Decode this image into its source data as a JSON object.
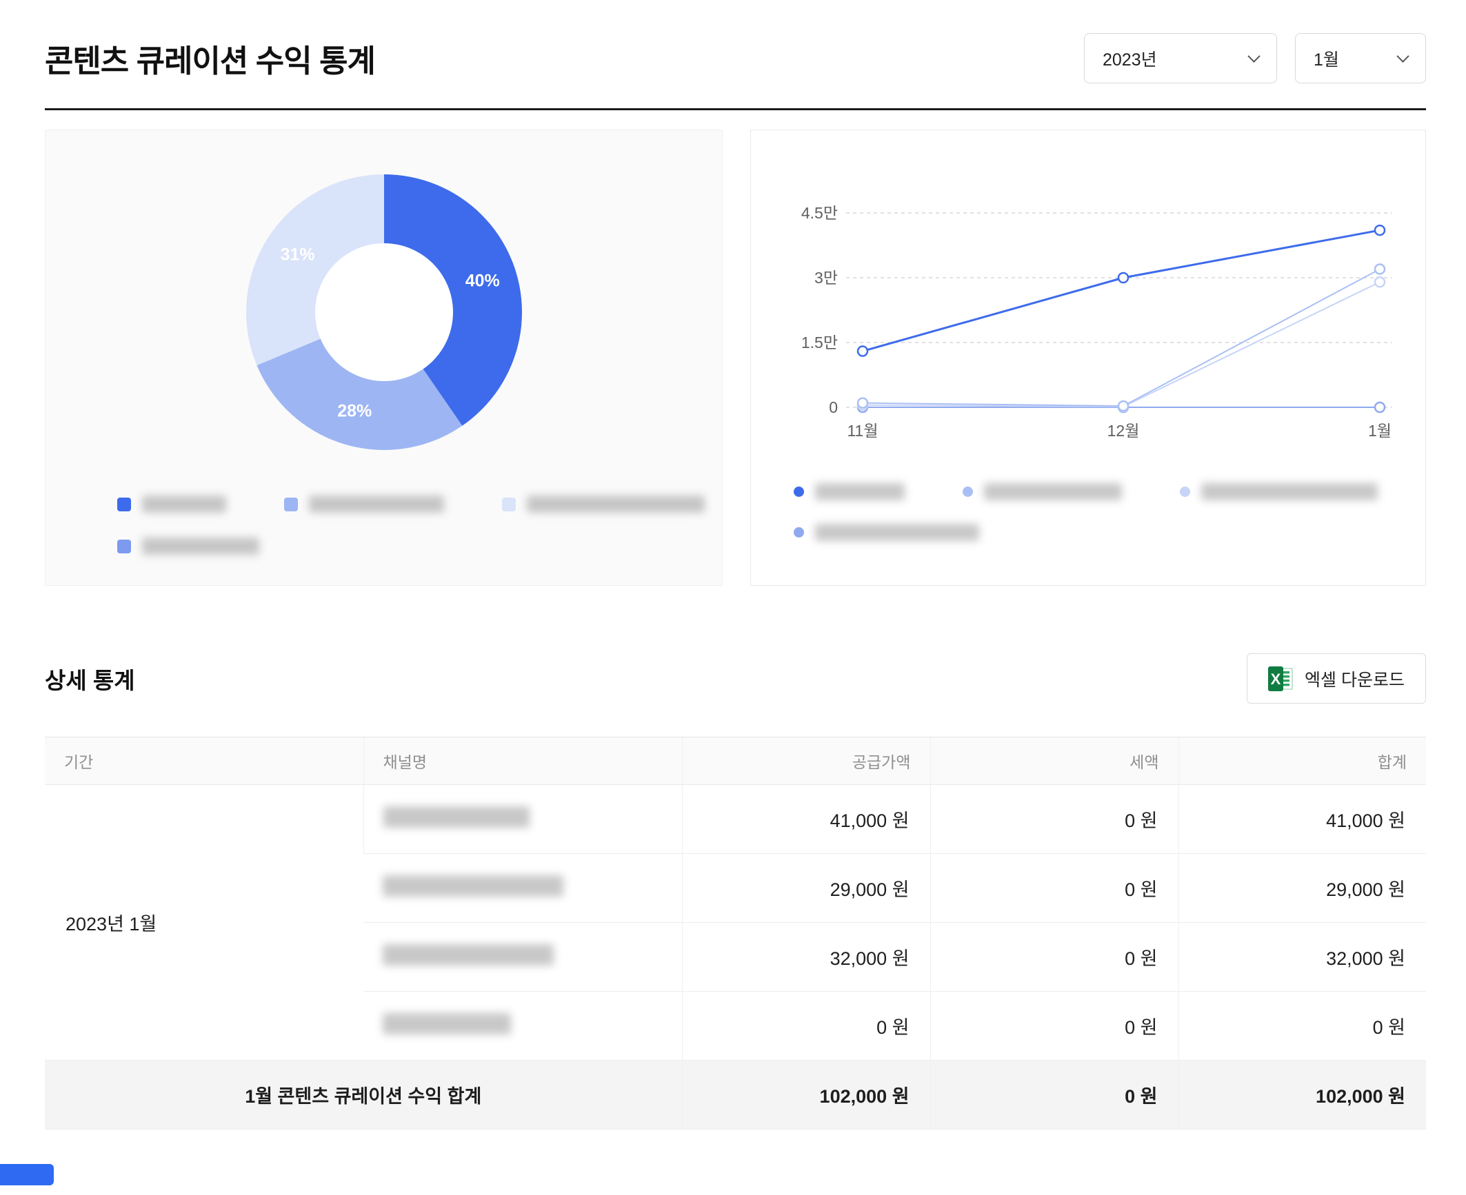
{
  "page": {
    "title": "콘텐츠 큐레이션 수익 통계"
  },
  "filters": {
    "year": "2023년",
    "month": "1월"
  },
  "detail": {
    "section_title": "상세 통계",
    "excel_button": "엑셀 다운로드"
  },
  "table": {
    "headers": [
      "기간",
      "채널명",
      "공급가액",
      "세액",
      "합계"
    ],
    "period": "2023년 1월",
    "rows": [
      {
        "supply": "41,000 원",
        "tax": "0 원",
        "total": "41,000 원"
      },
      {
        "supply": "29,000 원",
        "tax": "0 원",
        "total": "29,000 원"
      },
      {
        "supply": "32,000 원",
        "tax": "0 원",
        "total": "32,000 원"
      },
      {
        "supply": "0 원",
        "tax": "0 원",
        "total": "0 원"
      }
    ],
    "footer": {
      "label": "1월 콘텐츠 큐레이션 수익 합계",
      "supply": "102,000 원",
      "tax": "0 원",
      "total": "102,000 원"
    }
  },
  "chart_data": [
    {
      "type": "pie",
      "values": [
        40,
        28,
        31
      ],
      "labels": [
        "40%",
        "28%",
        "31%"
      ],
      "colors": [
        "#3d6beb",
        "#9db5f3",
        "#d9e3fa"
      ],
      "legend_colors": [
        "#3d6beb",
        "#9db5f3",
        "#d9e3fa",
        "#7d9af0"
      ],
      "legend_redacted": true
    },
    {
      "type": "line",
      "x": [
        "11월",
        "12월",
        "1월"
      ],
      "yticks": [
        "0",
        "1.5만",
        "3만",
        "4.5만"
      ],
      "ymax": 45000,
      "series": [
        {
          "color": "#3d6beb",
          "values": [
            13000,
            30000,
            41000
          ]
        },
        {
          "color": "#a9bff4",
          "values": [
            1000,
            300,
            32000
          ]
        },
        {
          "color": "#c7d4f7",
          "values": [
            500,
            150,
            29000
          ]
        },
        {
          "color": "#8fa9ef",
          "values": [
            0,
            0,
            0
          ]
        }
      ],
      "legend_redacted": true
    }
  ]
}
